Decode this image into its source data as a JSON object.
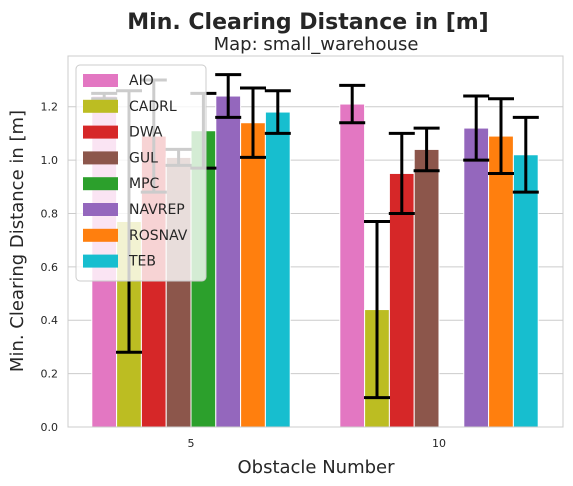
{
  "chart_data": {
    "type": "bar",
    "title": "Min. Clearing Distance in [m]",
    "subtitle": "Map: small_warehouse",
    "xlabel": "Obstacle Number",
    "ylabel": "Min. Clearing Distance in [m]",
    "categories": [
      "5",
      "10"
    ],
    "ylim": [
      0,
      1.39
    ],
    "yticks": [
      "0.0",
      "0.2",
      "0.4",
      "0.6",
      "0.8",
      "1.0",
      "1.2"
    ],
    "grid": true,
    "legend_position": "top-left",
    "error_bars": true,
    "series": [
      {
        "name": "AIO",
        "color": "#e377c2",
        "values": [
          1.24,
          1.21
        ],
        "err": [
          0.01,
          0.07
        ]
      },
      {
        "name": "CADRL",
        "color": "#bcbd22",
        "values": [
          0.77,
          0.44
        ],
        "err": [
          0.49,
          0.33
        ]
      },
      {
        "name": "DWA",
        "color": "#d62728",
        "values": [
          1.09,
          0.95
        ],
        "err": [
          0.21,
          0.15
        ]
      },
      {
        "name": "GUL",
        "color": "#8c564b",
        "values": [
          1.01,
          1.04
        ],
        "err": [
          0.03,
          0.08
        ]
      },
      {
        "name": "MPC",
        "color": "#2ca02c",
        "values": [
          1.11,
          null
        ],
        "err": [
          0.14,
          null
        ]
      },
      {
        "name": "NAVREP",
        "color": "#9467bd",
        "values": [
          1.24,
          1.12
        ],
        "err": [
          0.08,
          0.12
        ]
      },
      {
        "name": "ROSNAV",
        "color": "#ff7f0e",
        "values": [
          1.14,
          1.09
        ],
        "err": [
          0.13,
          0.14
        ]
      },
      {
        "name": "TEB",
        "color": "#17becf",
        "values": [
          1.18,
          1.02
        ],
        "err": [
          0.08,
          0.14
        ]
      }
    ]
  }
}
